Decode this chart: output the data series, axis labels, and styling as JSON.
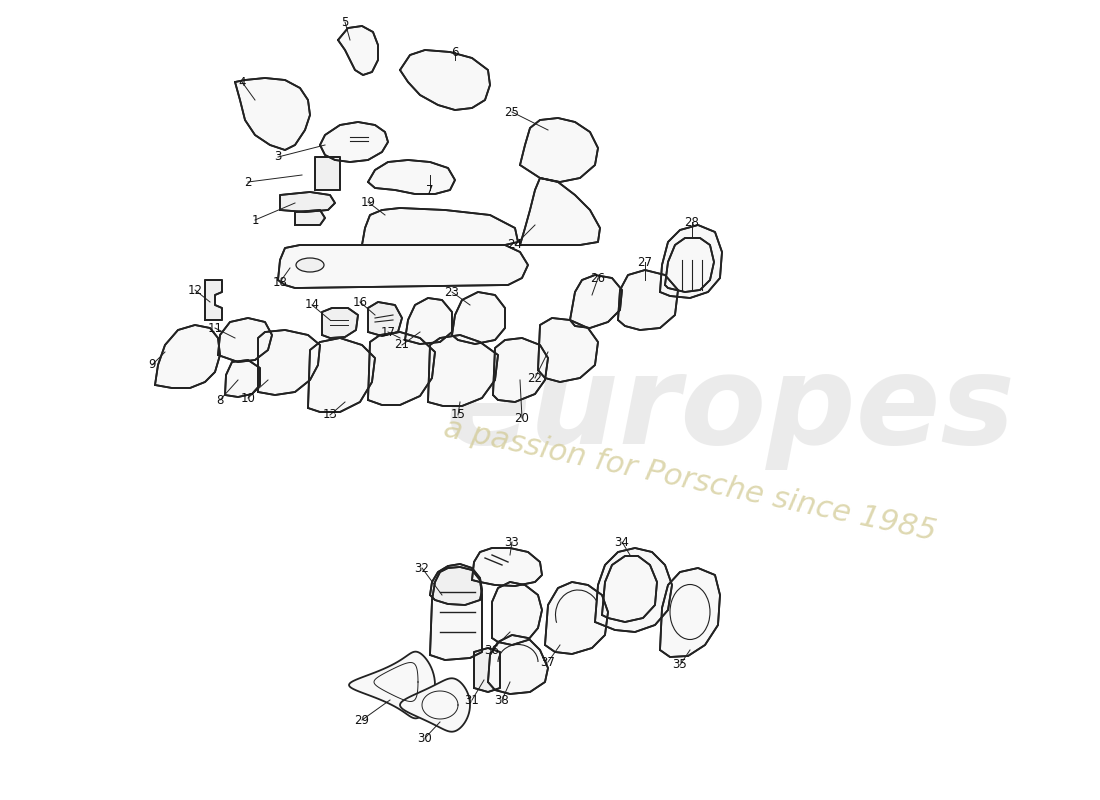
{
  "background_color": "#ffffff",
  "line_color": "#222222",
  "label_color": "#111111",
  "lw": 1.3,
  "watermark1": "europes",
  "watermark2": "a passion for Porsche since 1985",
  "wm_color1": "#c8c8c8",
  "wm_color2": "#d0c890",
  "figsize": [
    11.0,
    8.0
  ],
  "dpi": 100
}
